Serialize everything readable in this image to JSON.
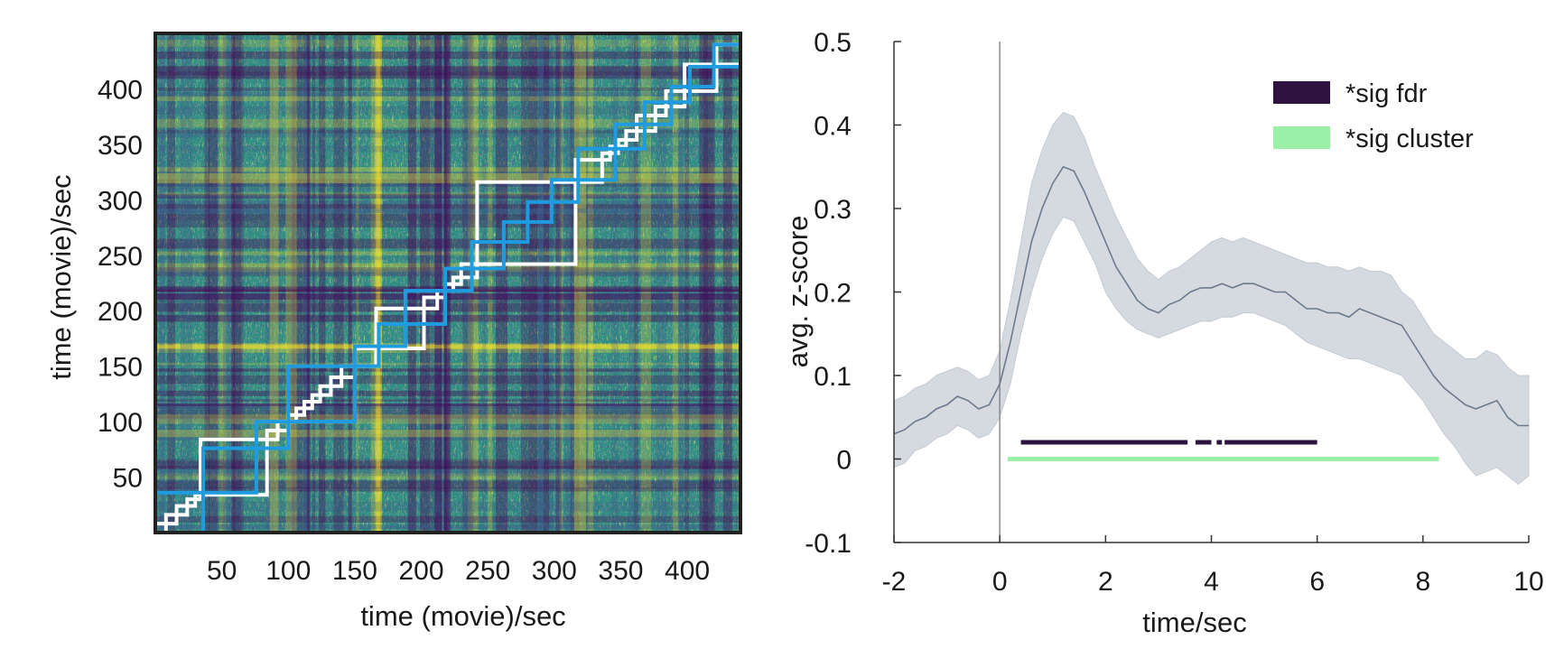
{
  "chart_data": [
    {
      "type": "heatmap",
      "title": "",
      "xlabel": "time (movie)/sec",
      "ylabel": "time (movie)/sec",
      "xlim": [
        0,
        440
      ],
      "ylim": [
        0,
        450
      ],
      "xticks": [
        50,
        100,
        150,
        200,
        250,
        300,
        350,
        400
      ],
      "yticks": [
        50,
        100,
        150,
        200,
        250,
        300,
        350,
        400
      ],
      "colormap": [
        "#440154",
        "#3b528b",
        "#21918c",
        "#5ec962",
        "#fde725"
      ],
      "overlay_segments": [
        {
          "name": "white boundaries",
          "color": "#ffffff",
          "segments": [
            [
              0,
              8
            ],
            [
              8,
              16
            ],
            [
              16,
              24
            ],
            [
              24,
              30
            ],
            [
              30,
              34
            ],
            [
              34,
              84
            ],
            [
              84,
              92
            ],
            [
              92,
              100
            ],
            [
              100,
              106
            ],
            [
              106,
              112
            ],
            [
              112,
              118
            ],
            [
              118,
              124
            ],
            [
              124,
              132
            ],
            [
              132,
              140
            ],
            [
              140,
              150
            ],
            [
              150,
              166
            ],
            [
              166,
              202
            ],
            [
              202,
              212
            ],
            [
              212,
              218
            ],
            [
              218,
              224
            ],
            [
              224,
              230
            ],
            [
              230,
              242
            ],
            [
              242,
              316
            ],
            [
              316,
              336
            ],
            [
              336,
              342
            ],
            [
              342,
              348
            ],
            [
              348,
              354
            ],
            [
              354,
              362
            ],
            [
              362,
              376
            ],
            [
              376,
              384
            ],
            [
              384,
              398
            ],
            [
              398,
              422
            ],
            [
              422,
              440
            ]
          ]
        },
        {
          "name": "blue boundaries",
          "color": "#1f9be0",
          "segments": [
            [
              0,
              36
            ],
            [
              36,
              76
            ],
            [
              76,
              100
            ],
            [
              100,
              150
            ],
            [
              150,
              168
            ],
            [
              168,
              188
            ],
            [
              188,
              218
            ],
            [
              218,
              238
            ],
            [
              238,
              262
            ],
            [
              262,
              280
            ],
            [
              280,
              298
            ],
            [
              298,
              318
            ],
            [
              318,
              346
            ],
            [
              346,
              368
            ],
            [
              368,
              388
            ],
            [
              388,
              402
            ],
            [
              402,
              420
            ],
            [
              420,
              440
            ]
          ]
        }
      ]
    },
    {
      "type": "line",
      "title": "",
      "xlabel": "time/sec",
      "ylabel": "avg. z-score",
      "xlim": [
        -2,
        10
      ],
      "ylim": [
        -0.1,
        0.5
      ],
      "xticks": [
        -2,
        0,
        2,
        4,
        6,
        8,
        10
      ],
      "yticks": [
        -0.1,
        0,
        0.1,
        0.2,
        0.3,
        0.4,
        0.5
      ],
      "ytick_labels": [
        "-0.1",
        "0",
        "0.1",
        "0.2",
        "0.3",
        "0.4",
        "0.5"
      ],
      "vline_x": 0,
      "series": [
        {
          "name": "mean",
          "color": "#6b7a8c",
          "x": [
            -2,
            -1.8,
            -1.6,
            -1.4,
            -1.2,
            -1.0,
            -0.8,
            -0.6,
            -0.4,
            -0.2,
            0,
            0.2,
            0.4,
            0.6,
            0.8,
            1.0,
            1.2,
            1.4,
            1.6,
            1.8,
            2.0,
            2.2,
            2.4,
            2.6,
            2.8,
            3.0,
            3.2,
            3.4,
            3.6,
            3.8,
            4.0,
            4.2,
            4.4,
            4.6,
            4.8,
            5.0,
            5.2,
            5.4,
            5.6,
            5.8,
            6.0,
            6.2,
            6.4,
            6.6,
            6.8,
            7.0,
            7.2,
            7.4,
            7.6,
            7.8,
            8.0,
            8.2,
            8.4,
            8.6,
            8.8,
            9.0,
            9.2,
            9.4,
            9.6,
            9.8,
            10.0
          ],
          "y": [
            0.03,
            0.035,
            0.045,
            0.05,
            0.06,
            0.065,
            0.075,
            0.07,
            0.06,
            0.065,
            0.09,
            0.14,
            0.2,
            0.26,
            0.3,
            0.33,
            0.35,
            0.345,
            0.32,
            0.29,
            0.26,
            0.23,
            0.21,
            0.19,
            0.18,
            0.175,
            0.185,
            0.19,
            0.2,
            0.205,
            0.205,
            0.21,
            0.205,
            0.21,
            0.21,
            0.205,
            0.2,
            0.2,
            0.19,
            0.18,
            0.18,
            0.175,
            0.175,
            0.17,
            0.18,
            0.175,
            0.17,
            0.165,
            0.16,
            0.14,
            0.12,
            0.1,
            0.085,
            0.075,
            0.065,
            0.06,
            0.065,
            0.07,
            0.05,
            0.04,
            0.04
          ]
        }
      ],
      "band": {
        "name": "error band",
        "color": "#d5dae1",
        "lower": [
          -0.01,
          -0.005,
          0.01,
          0.015,
          0.025,
          0.03,
          0.04,
          0.035,
          0.025,
          0.03,
          0.05,
          0.09,
          0.15,
          0.2,
          0.24,
          0.27,
          0.29,
          0.285,
          0.26,
          0.235,
          0.2,
          0.18,
          0.165,
          0.155,
          0.15,
          0.145,
          0.15,
          0.155,
          0.16,
          0.165,
          0.165,
          0.17,
          0.17,
          0.175,
          0.175,
          0.17,
          0.165,
          0.16,
          0.15,
          0.14,
          0.135,
          0.13,
          0.125,
          0.12,
          0.12,
          0.115,
          0.11,
          0.105,
          0.1,
          0.085,
          0.07,
          0.05,
          0.03,
          0.015,
          -0.005,
          -0.02,
          -0.015,
          -0.01,
          -0.02,
          -0.03,
          -0.02
        ],
        "upper": [
          0.07,
          0.075,
          0.085,
          0.09,
          0.1,
          0.105,
          0.11,
          0.105,
          0.095,
          0.1,
          0.13,
          0.19,
          0.26,
          0.33,
          0.37,
          0.4,
          0.415,
          0.41,
          0.385,
          0.35,
          0.32,
          0.29,
          0.265,
          0.24,
          0.225,
          0.215,
          0.225,
          0.23,
          0.24,
          0.25,
          0.26,
          0.265,
          0.26,
          0.265,
          0.26,
          0.255,
          0.25,
          0.245,
          0.24,
          0.235,
          0.235,
          0.23,
          0.23,
          0.225,
          0.23,
          0.225,
          0.225,
          0.22,
          0.2,
          0.19,
          0.17,
          0.15,
          0.14,
          0.13,
          0.12,
          0.12,
          0.13,
          0.125,
          0.11,
          0.1,
          0.1
        ]
      },
      "significance_bars": [
        {
          "name": "*sig fdr",
          "color": "#2e1240",
          "y": 0.02,
          "ranges": [
            [
              0.4,
              3.55
            ],
            [
              3.7,
              4.0
            ],
            [
              4.1,
              4.2
            ],
            [
              4.25,
              6.0
            ]
          ]
        },
        {
          "name": "*sig cluster",
          "color": "#9af0a8",
          "y": 0.0,
          "ranges": [
            [
              0.15,
              8.3
            ]
          ]
        }
      ],
      "legend": {
        "placement": "top-right",
        "entries": [
          {
            "label": "*sig fdr",
            "color": "#2e1240"
          },
          {
            "label": "*sig cluster",
            "color": "#9af0a8"
          }
        ]
      }
    }
  ]
}
